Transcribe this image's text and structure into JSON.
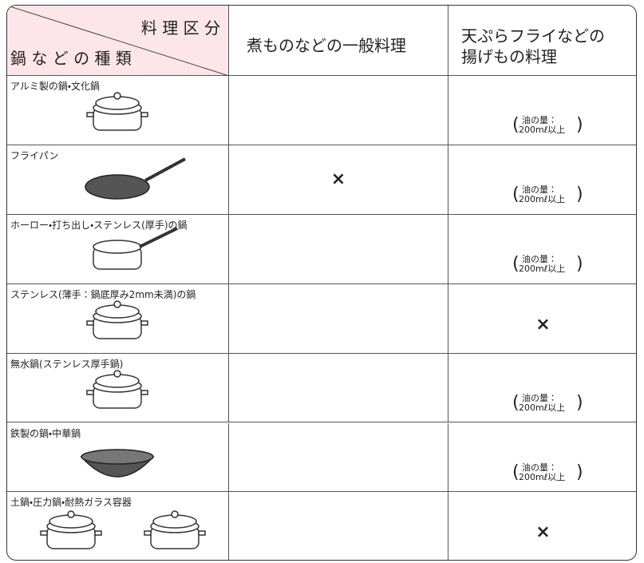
{
  "header": {
    "category": "料 理 区 分",
    "kind": "鍋 な ど の 種 類",
    "columns": [
      "煮ものなどの一般料理",
      [
        "天ぷらフライなどの",
        "揚げもの料理"
      ]
    ]
  },
  "rows": [
    {
      "name": "アルミ製の鍋・文化鍋",
      "fried": {
        "label": "油の量：",
        "amount": "200mℓ以上"
      }
    },
    {
      "name": "フライパン",
      "general": "×",
      "fried": {
        "label": "油の量：",
        "amount": "200mℓ以上"
      }
    },
    {
      "name": "ホーロー・打ち出し・ステンレス(厚手)の鍋",
      "fried": {
        "label": "油の量：",
        "amount": "200mℓ以上"
      }
    },
    {
      "name": "ステンレス(薄手：鍋底厚み2mm未満)の鍋",
      "fried": "×"
    },
    {
      "name": "無水鍋(ステンレス厚手鍋)",
      "fried": {
        "label": "油の量：",
        "amount": "200mℓ以上"
      }
    },
    {
      "name": "鉄製の鍋・中華鍋",
      "fried": {
        "label": "油の量：",
        "amount": "200mℓ以上"
      }
    },
    {
      "name": "土鍋・圧力鍋・耐熱ガラス容器",
      "fried": "×"
    }
  ]
}
